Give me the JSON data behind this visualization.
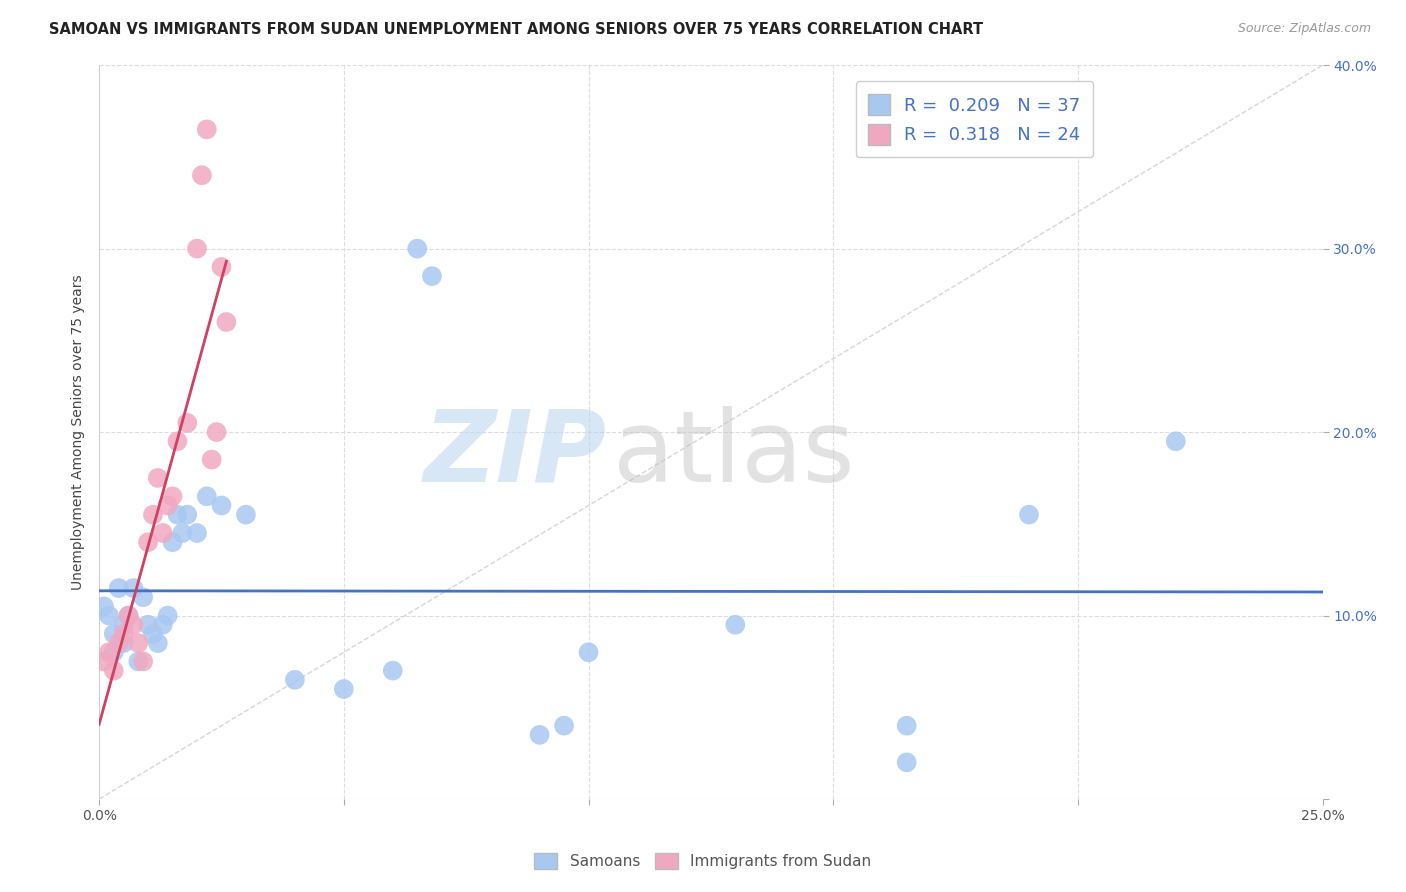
{
  "title": "SAMOAN VS IMMIGRANTS FROM SUDAN UNEMPLOYMENT AMONG SENIORS OVER 75 YEARS CORRELATION CHART",
  "source": "Source: ZipAtlas.com",
  "ylabel": "Unemployment Among Seniors over 75 years",
  "xlim": [
    0.0,
    0.25
  ],
  "ylim": [
    0.0,
    0.4
  ],
  "xticks": [
    0.0,
    0.05,
    0.1,
    0.15,
    0.2,
    0.25
  ],
  "xticklabels": [
    "0.0%",
    "",
    "",
    "",
    "",
    "25.0%"
  ],
  "yticks": [
    0.0,
    0.1,
    0.2,
    0.3,
    0.4
  ],
  "yticklabels": [
    "",
    "10.0%",
    "20.0%",
    "30.0%",
    "40.0%"
  ],
  "samoan_R": 0.209,
  "samoan_N": 37,
  "sudan_R": 0.318,
  "sudan_N": 24,
  "samoan_color": "#a8c8f0",
  "sudan_color": "#f0a8c0",
  "trend_samoan_color": "#4472c4",
  "trend_sudan_color": "#d04060",
  "diagonal_color": "#cccccc",
  "background_color": "#ffffff",
  "grid_color": "#dddddd",
  "samoan_x": [
    0.001,
    0.002,
    0.003,
    0.003,
    0.004,
    0.005,
    0.005,
    0.006,
    0.007,
    0.008,
    0.009,
    0.01,
    0.011,
    0.012,
    0.013,
    0.014,
    0.015,
    0.016,
    0.017,
    0.018,
    0.02,
    0.022,
    0.025,
    0.03,
    0.04,
    0.05,
    0.06,
    0.065,
    0.068,
    0.09,
    0.1,
    0.095,
    0.13,
    0.165,
    0.165,
    0.19,
    0.22
  ],
  "samoan_y": [
    0.105,
    0.1,
    0.09,
    0.08,
    0.115,
    0.095,
    0.085,
    0.1,
    0.115,
    0.075,
    0.11,
    0.095,
    0.09,
    0.085,
    0.095,
    0.1,
    0.14,
    0.155,
    0.145,
    0.155,
    0.145,
    0.165,
    0.16,
    0.155,
    0.065,
    0.06,
    0.07,
    0.3,
    0.285,
    0.035,
    0.08,
    0.04,
    0.095,
    0.02,
    0.04,
    0.155,
    0.195
  ],
  "sudan_x": [
    0.001,
    0.002,
    0.003,
    0.004,
    0.005,
    0.006,
    0.007,
    0.008,
    0.009,
    0.01,
    0.011,
    0.012,
    0.013,
    0.014,
    0.015,
    0.016,
    0.018,
    0.02,
    0.021,
    0.022,
    0.023,
    0.024,
    0.025,
    0.026
  ],
  "sudan_y": [
    0.075,
    0.08,
    0.07,
    0.085,
    0.09,
    0.1,
    0.095,
    0.085,
    0.075,
    0.14,
    0.155,
    0.175,
    0.145,
    0.16,
    0.165,
    0.195,
    0.205,
    0.3,
    0.34,
    0.365,
    0.185,
    0.2,
    0.29,
    0.26
  ],
  "watermark_zip_color": "#b8d4f0",
  "watermark_atlas_color": "#c0c0c0",
  "legend_label_samoan": "Samoans",
  "legend_label_sudan": "Immigrants from Sudan"
}
